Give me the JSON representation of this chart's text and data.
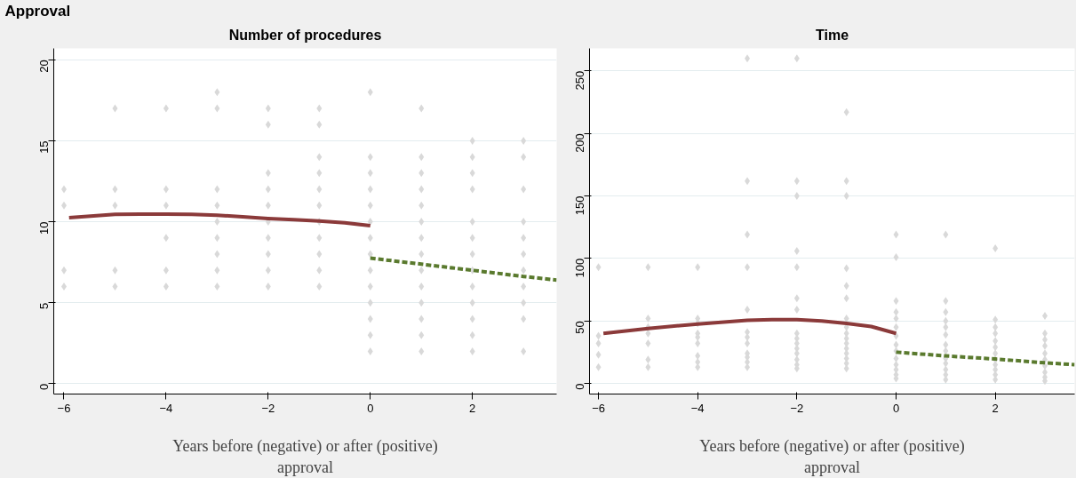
{
  "chart_data": [
    {
      "type": "scatter",
      "annotations": [
        "Approval"
      ],
      "title": "Number of procedures",
      "xlabel": "Years before (negative) or after (positive)\napproval",
      "xlim": [
        -6.2,
        3.65
      ],
      "xticks": [
        -6,
        -4,
        -2,
        0,
        2
      ],
      "ylim": [
        -0.64,
        20.7
      ],
      "yticks": [
        0,
        5,
        10,
        15,
        20
      ],
      "grid": "y",
      "series": [
        {
          "marker": "diamond",
          "color": "#d9d9d9",
          "x": [
            -6,
            -6,
            -6,
            -6,
            -5,
            -5,
            -5,
            -5,
            -5,
            -4,
            -4,
            -4,
            -4,
            -4,
            -4,
            -3,
            -3,
            -3,
            -3,
            -3,
            -3,
            -3,
            -3,
            -3,
            -2,
            -2,
            -2,
            -2,
            -2,
            -2,
            -2,
            -2,
            -2,
            -2,
            -1,
            -1,
            -1,
            -1,
            -1,
            -1,
            -1,
            -1,
            -1,
            -1,
            -1,
            0,
            0,
            0,
            0,
            0,
            0,
            0,
            0,
            0,
            0,
            0,
            0,
            0,
            0,
            1,
            1,
            1,
            1,
            1,
            1,
            1,
            1,
            1,
            1,
            1,
            1,
            1,
            1,
            2,
            2,
            2,
            2,
            2,
            2,
            2,
            2,
            2,
            2,
            2,
            2,
            2,
            3,
            3,
            3,
            3,
            3,
            3,
            3,
            3,
            3,
            3,
            3
          ],
          "values": [
            12,
            11,
            7,
            6,
            17,
            12,
            11,
            7,
            6,
            17,
            12,
            11,
            9,
            7,
            6,
            18,
            17,
            12,
            11,
            10,
            9,
            8,
            7,
            6,
            17,
            16,
            13,
            12,
            11,
            10,
            9,
            8,
            7,
            6,
            17,
            16,
            14,
            13,
            12,
            11,
            10,
            9,
            8,
            7,
            6,
            18,
            14,
            13,
            12,
            11,
            10,
            9,
            8,
            7,
            6,
            5,
            4,
            3,
            2,
            17,
            14,
            13,
            12,
            11,
            10,
            9,
            8,
            7,
            6,
            5,
            4,
            3,
            2,
            15,
            14,
            13,
            12,
            10,
            9,
            8,
            7,
            6,
            5,
            4,
            3,
            2,
            15,
            14,
            12,
            10,
            9,
            8,
            7,
            6,
            5,
            4,
            2
          ]
        },
        {
          "type": "line",
          "color": "#8b3a3a",
          "line_style": "solid",
          "x": [
            -5.9,
            -5,
            -4.5,
            -4,
            -3.5,
            -3,
            -2.5,
            -2,
            -1.5,
            -1,
            -0.5,
            0
          ],
          "values": [
            10.25,
            10.45,
            10.47,
            10.47,
            10.45,
            10.4,
            10.3,
            10.2,
            10.13,
            10.05,
            9.93,
            9.75
          ]
        },
        {
          "type": "line",
          "color": "#5a7a2e",
          "line_style": "dashed",
          "x": [
            0,
            1,
            2,
            3,
            3.65
          ],
          "values": [
            7.75,
            7.38,
            7.0,
            6.62,
            6.4
          ]
        }
      ]
    },
    {
      "type": "scatter",
      "title": "Time",
      "xlabel": "Years before (negative) or after (positive)\napproval",
      "xlim": [
        -6.18,
        3.6
      ],
      "xticks": [
        -6,
        -4,
        -2,
        0,
        2
      ],
      "ylim": [
        -8.5,
        268
      ],
      "yticks": [
        0,
        50,
        100,
        150,
        200,
        250
      ],
      "grid": "y",
      "series": [
        {
          "marker": "diamond",
          "color": "#d9d9d9",
          "x": [
            -6,
            -6,
            -6,
            -6,
            -6,
            -5,
            -5,
            -5,
            -5,
            -5,
            -5,
            -5,
            -4,
            -4,
            -4,
            -4,
            -4,
            -4,
            -4,
            -4,
            -4,
            -3,
            -3,
            -3,
            -3,
            -3,
            -3,
            -3,
            -3,
            -3,
            -3,
            -3,
            -3,
            -2,
            -2,
            -2,
            -2,
            -2,
            -2,
            -2,
            -2,
            -2,
            -2,
            -2,
            -2,
            -2,
            -2,
            -2,
            -1,
            -1,
            -1,
            -1,
            -1,
            -1,
            -1,
            -1,
            -1,
            -1,
            -1,
            -1,
            -1,
            -1,
            -1,
            -1,
            0,
            0,
            0,
            0,
            0,
            0,
            0,
            0,
            0,
            0,
            0,
            0,
            0,
            0,
            1,
            1,
            1,
            1,
            1,
            1,
            1,
            1,
            1,
            1,
            1,
            1,
            1,
            2,
            2,
            2,
            2,
            2,
            2,
            2,
            2,
            2,
            2,
            2,
            2,
            3,
            3,
            3,
            3,
            3,
            3,
            3,
            3,
            3,
            3
          ],
          "values": [
            93,
            38,
            32,
            23,
            13,
            93,
            52,
            45,
            40,
            32,
            19,
            13,
            93,
            52,
            48,
            40,
            37,
            32,
            22,
            17,
            13,
            260,
            162,
            119,
            93,
            59,
            41,
            37,
            32,
            24,
            21,
            17,
            13,
            260,
            162,
            150,
            106,
            93,
            68,
            59,
            40,
            36,
            32,
            28,
            24,
            19,
            15,
            12,
            217,
            162,
            150,
            92,
            78,
            68,
            52,
            45,
            40,
            36,
            32,
            28,
            24,
            20,
            16,
            12,
            119,
            101,
            66,
            57,
            52,
            45,
            38,
            31,
            26,
            20,
            15,
            11,
            7,
            4,
            119,
            66,
            57,
            50,
            45,
            39,
            31,
            26,
            20,
            16,
            11,
            7,
            3,
            108,
            51,
            45,
            40,
            34,
            29,
            24,
            19,
            15,
            11,
            7,
            3,
            54,
            40,
            35,
            30,
            24,
            19,
            14,
            9,
            5,
            2
          ]
        },
        {
          "type": "line",
          "color": "#8b3a3a",
          "line_style": "solid",
          "x": [
            -5.9,
            -5,
            -4,
            -3,
            -2.5,
            -2,
            -1.5,
            -1,
            -0.5,
            0
          ],
          "values": [
            40,
            44,
            47.5,
            50.5,
            51,
            51,
            50,
            48,
            45.5,
            40
          ]
        },
        {
          "type": "line",
          "color": "#5a7a2e",
          "line_style": "dashed",
          "x": [
            0,
            1,
            2,
            3,
            3.6
          ],
          "values": [
            25,
            22,
            19.5,
            16.5,
            15
          ]
        }
      ]
    }
  ]
}
